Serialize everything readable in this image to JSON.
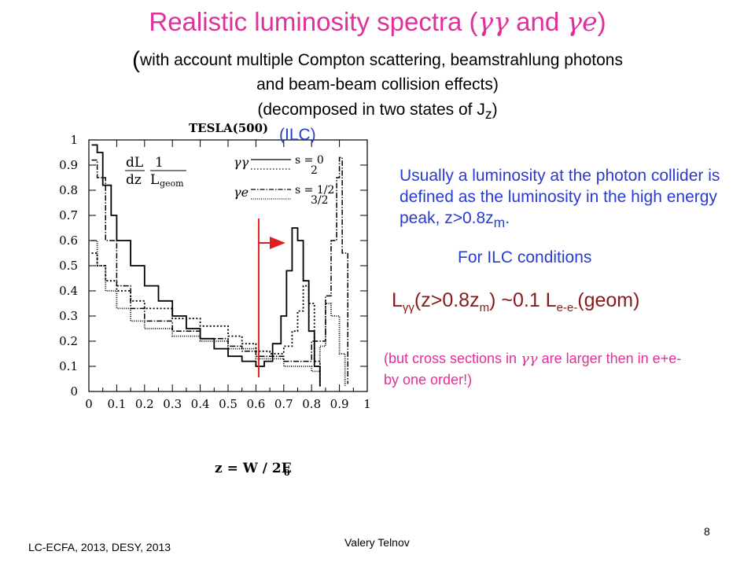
{
  "slide": {
    "title_prefix": "Realistic luminosity spectra (",
    "title_gg": "γγ",
    "title_and": " and ",
    "title_ge": "γe",
    "title_suffix": ")",
    "subtitle_open": "(",
    "subtitle_line1": "with account multiple Compton scattering, beamstrahlung photons",
    "subtitle_line2": "and beam-beam collision effects)",
    "subtitle_line3_prefix": "(decomposed in two states of J",
    "subtitle_line3_sub": "z",
    "subtitle_line3_suffix": ")",
    "ilc_label": "(ILC)",
    "blue_text_main": "Usually a luminosity at the photon collider is defined as the luminosity in the high energy peak, z>0.8z",
    "blue_text_sub": "m",
    "blue_text_end": ".",
    "ilc_conditions": "For ILC conditions",
    "formula": {
      "L": "L",
      "sub_gg": "γγ",
      "mid1": "(z>0.8z",
      "sub_m": "m",
      "mid2": ") ~0.1 L",
      "sub_ee": "e-e-",
      "end": "(geom)"
    },
    "note_prefix": "(but cross sections in ",
    "note_gg": "γγ",
    "note_suffix": " are larger then in e+e- by one order!)",
    "footer_left": "LC-ECFA, 2013, DESY, 2013",
    "footer_author": "Valery Telnov",
    "page_number": "8",
    "colors": {
      "pink": "#e0309a",
      "blue": "#2a3bd0",
      "formula": "#8a1a1a",
      "red_marker": "#e02020"
    }
  },
  "chart_data": {
    "type": "line",
    "title": "TESLA(500)",
    "xlabel": "z = W / 2E",
    "xlabel_sub": "0",
    "ylabel_top": "dL",
    "ylabel_bottom": "dz",
    "ylabel_fraction_top": "1",
    "ylabel_fraction_bottom": "L",
    "ylabel_fraction_sub": "geom",
    "xlim": [
      0,
      1
    ],
    "ylim": [
      0,
      1
    ],
    "xticks": [
      "0",
      "0.1",
      "0.2",
      "0.3",
      "0.4",
      "0.5",
      "0.6",
      "0.7",
      "0.8",
      "0.9",
      "1"
    ],
    "yticks": [
      "0",
      "0.1",
      "0.2",
      "0.3",
      "0.4",
      "0.5",
      "0.6",
      "0.7",
      "0.8",
      "0.9",
      "1"
    ],
    "legend": {
      "gg_label": "γγ",
      "ge_label": "γe",
      "s0": "s = 0",
      "s2": "2",
      "s12": "s = 1/2",
      "s32": "3/2"
    },
    "marker_z": 0.61,
    "series": [
      {
        "style": "solid",
        "x": [
          0.01,
          0.03,
          0.05,
          0.08,
          0.1,
          0.15,
          0.2,
          0.25,
          0.3,
          0.35,
          0.4,
          0.45,
          0.5,
          0.55,
          0.6,
          0.63,
          0.66,
          0.69,
          0.71,
          0.73,
          0.75,
          0.77,
          0.79,
          0.81,
          0.83
        ],
        "y": [
          0.98,
          0.95,
          0.82,
          0.7,
          0.6,
          0.5,
          0.42,
          0.36,
          0.3,
          0.25,
          0.21,
          0.17,
          0.14,
          0.12,
          0.1,
          0.12,
          0.19,
          0.3,
          0.48,
          0.65,
          0.6,
          0.44,
          0.24,
          0.1,
          0.02
        ]
      },
      {
        "style": "dotted",
        "x": [
          0.01,
          0.03,
          0.06,
          0.1,
          0.15,
          0.2,
          0.3,
          0.4,
          0.5,
          0.55,
          0.6,
          0.65,
          0.7,
          0.73,
          0.75,
          0.77,
          0.79,
          0.81,
          0.83
        ],
        "y": [
          0.55,
          0.5,
          0.44,
          0.4,
          0.36,
          0.33,
          0.29,
          0.26,
          0.22,
          0.19,
          0.16,
          0.15,
          0.18,
          0.24,
          0.32,
          0.42,
          0.35,
          0.12,
          0.02
        ]
      },
      {
        "style": "dashdot",
        "x": [
          0.01,
          0.03,
          0.06,
          0.1,
          0.15,
          0.2,
          0.3,
          0.4,
          0.5,
          0.55,
          0.6,
          0.7,
          0.8,
          0.85,
          0.87,
          0.89,
          0.9,
          0.91,
          0.93
        ],
        "y": [
          0.92,
          0.85,
          0.6,
          0.42,
          0.33,
          0.28,
          0.24,
          0.21,
          0.18,
          0.16,
          0.14,
          0.12,
          0.2,
          0.38,
          0.6,
          0.85,
          0.93,
          0.55,
          0.03
        ]
      },
      {
        "style": "denseDotted",
        "x": [
          0.01,
          0.03,
          0.06,
          0.1,
          0.15,
          0.2,
          0.3,
          0.4,
          0.5,
          0.6,
          0.7,
          0.8,
          0.83,
          0.85,
          0.87,
          0.9,
          0.92
        ],
        "y": [
          0.6,
          0.5,
          0.4,
          0.33,
          0.28,
          0.25,
          0.22,
          0.2,
          0.17,
          0.13,
          0.1,
          0.08,
          0.18,
          0.35,
          0.3,
          0.15,
          0.02
        ]
      }
    ]
  }
}
